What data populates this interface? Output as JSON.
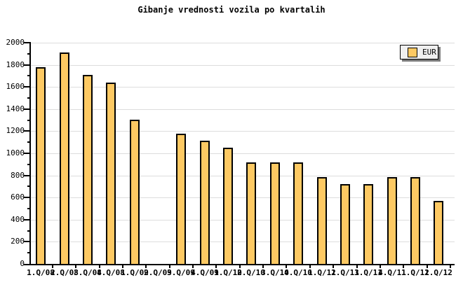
{
  "colors": {
    "background": "#FFFFFF",
    "bar_fill": "#FDC963",
    "bar_border": "#000000",
    "grid": "#DDDDDD",
    "axis": "#000000",
    "text": "#000000",
    "legend_bg": "#EFEFEF",
    "legend_shadow": "#7A7A7A"
  },
  "legend": {
    "label": "EUR",
    "swatch_icon": "orange-square-swatch"
  },
  "chart_data": {
    "type": "bar",
    "title": "Gibanje vrednosti vozila po kvartalih",
    "categories": [
      "1.Q/08",
      "2.Q/08",
      "3.Q/08",
      "4.Q/08",
      "1.Q/09",
      "2.Q/09",
      "3.Q/09",
      "4.Q/09",
      "1.Q/10",
      "2.Q/10",
      "3.Q/10",
      "4.Q/10",
      "1.Q/11",
      "2.Q/11",
      "3.Q/11",
      "4.Q/11",
      "1.Q/12",
      "1.Q/12"
    ],
    "values": [
      1780,
      1910,
      1710,
      1640,
      1305,
      null,
      1180,
      1115,
      1050,
      920,
      920,
      920,
      785,
      720,
      720,
      785,
      785,
      570
    ],
    "xlabel": "",
    "ylabel": "",
    "ylim": [
      0,
      2000
    ],
    "y_major_step": 200,
    "y_minor_step": 100,
    "y_tick_labels": [
      "0",
      "200",
      "400",
      "600",
      "800",
      "1000",
      "1200",
      "1400",
      "1600",
      "1800",
      "2000"
    ],
    "grid": true,
    "legend": [
      "EUR"
    ],
    "legend_position": "top-right",
    "missing_slots": [
      "2.Q/09"
    ]
  }
}
